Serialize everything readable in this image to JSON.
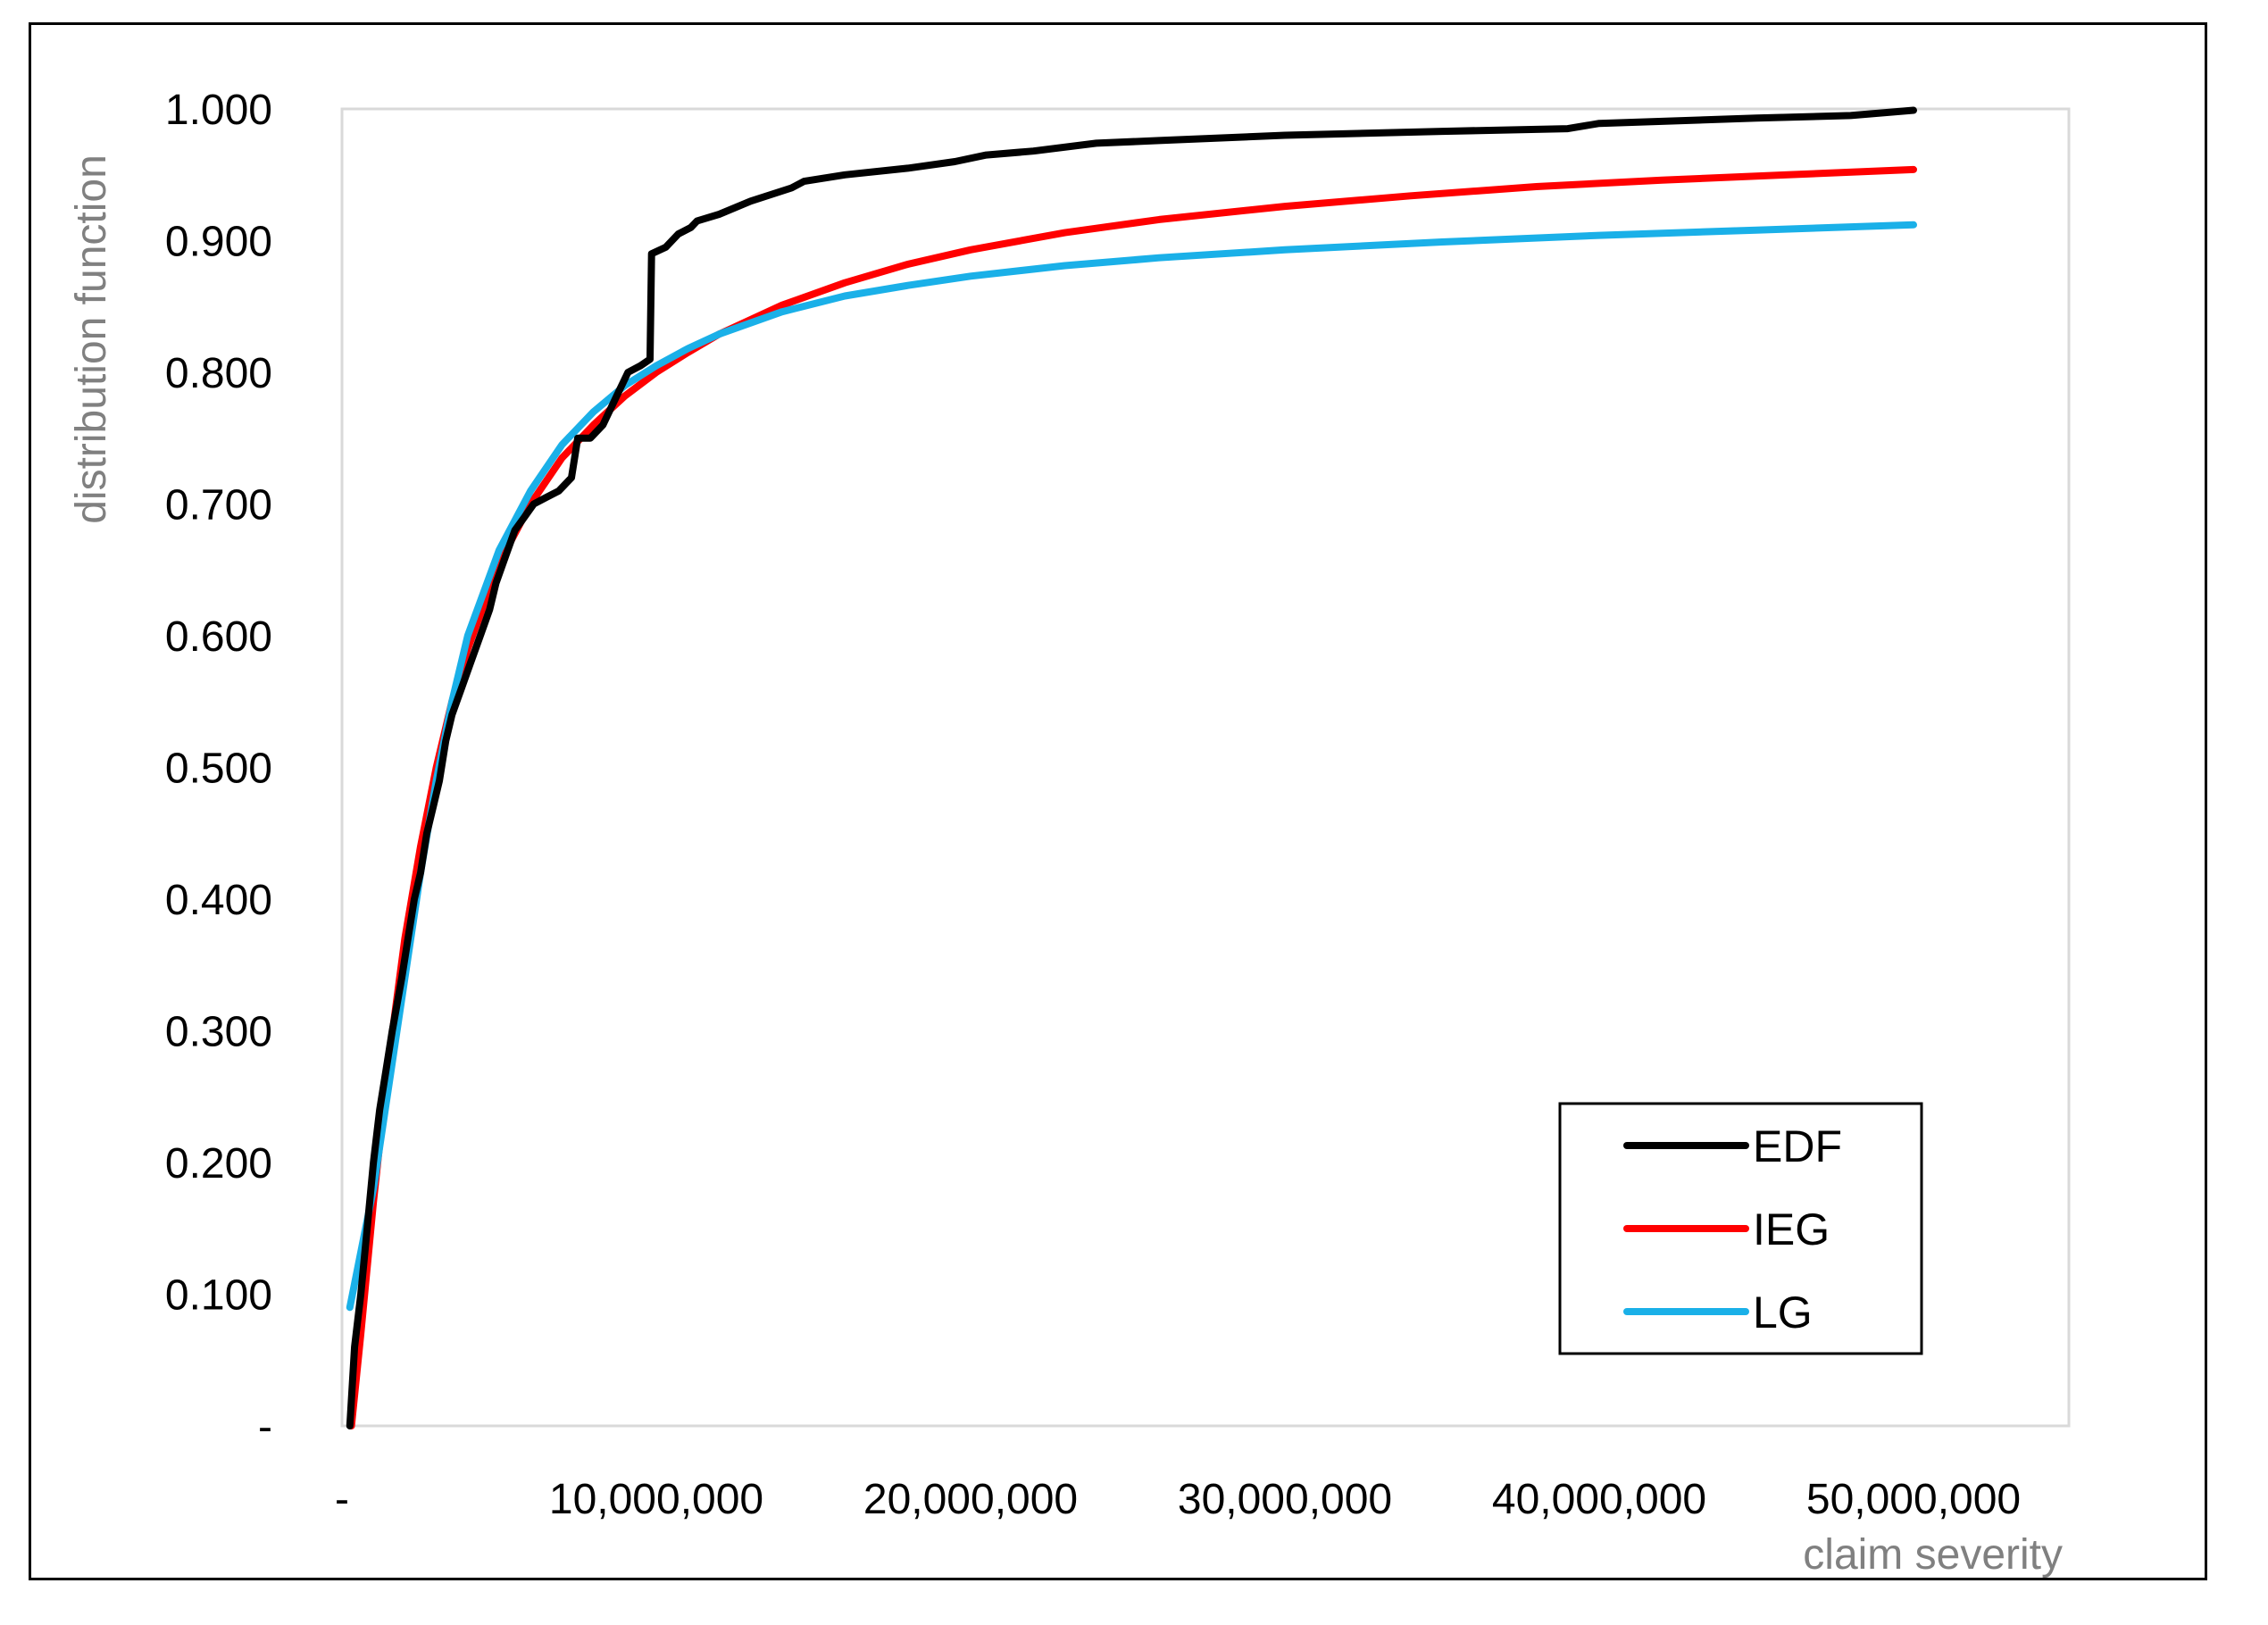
{
  "chart_data": {
    "type": "line",
    "title": "",
    "xlabel": "claim severity",
    "ylabel": "distribution function",
    "xlim": [
      0,
      55000000
    ],
    "ylim": [
      0,
      1.0
    ],
    "x_ticks": [
      {
        "value": 0,
        "label": "-"
      },
      {
        "value": 10000000,
        "label": "10,000,000"
      },
      {
        "value": 20000000,
        "label": "20,000,000"
      },
      {
        "value": 30000000,
        "label": "30,000,000"
      },
      {
        "value": 40000000,
        "label": "40,000,000"
      },
      {
        "value": 50000000,
        "label": "50,000,000"
      }
    ],
    "y_ticks": [
      {
        "value": 0,
        "label": "-"
      },
      {
        "value": 0.1,
        "label": "0.100"
      },
      {
        "value": 0.2,
        "label": "0.200"
      },
      {
        "value": 0.3,
        "label": "0.300"
      },
      {
        "value": 0.4,
        "label": "0.400"
      },
      {
        "value": 0.5,
        "label": "0.500"
      },
      {
        "value": 0.6,
        "label": "0.600"
      },
      {
        "value": 0.7,
        "label": "0.700"
      },
      {
        "value": 0.8,
        "label": "0.800"
      },
      {
        "value": 0.9,
        "label": "0.900"
      },
      {
        "value": 1.0,
        "label": "1.000"
      }
    ],
    "grid": false,
    "legend_position": "bottom-right",
    "series": [
      {
        "name": "EDF",
        "color": "#000000",
        "points": [
          [
            250000,
            0.0
          ],
          [
            400000,
            0.06
          ],
          [
            600000,
            0.1
          ],
          [
            800000,
            0.15
          ],
          [
            1000000,
            0.2
          ],
          [
            1200000,
            0.24
          ],
          [
            1400000,
            0.27
          ],
          [
            1600000,
            0.3
          ],
          [
            1900000,
            0.34
          ],
          [
            2100000,
            0.37
          ],
          [
            2300000,
            0.4
          ],
          [
            2500000,
            0.42
          ],
          [
            2700000,
            0.45
          ],
          [
            2900000,
            0.47
          ],
          [
            3100000,
            0.49
          ],
          [
            3300000,
            0.52
          ],
          [
            3500000,
            0.54
          ],
          [
            3800000,
            0.56
          ],
          [
            4100000,
            0.58
          ],
          [
            4400000,
            0.6
          ],
          [
            4700000,
            0.62
          ],
          [
            4900000,
            0.64
          ],
          [
            5200000,
            0.66
          ],
          [
            5500000,
            0.68
          ],
          [
            5800000,
            0.69
          ],
          [
            6100000,
            0.7
          ],
          [
            6500000,
            0.705
          ],
          [
            6900000,
            0.71
          ],
          [
            7300000,
            0.72
          ],
          [
            7500000,
            0.75
          ],
          [
            7900000,
            0.75
          ],
          [
            8300000,
            0.76
          ],
          [
            8700000,
            0.78
          ],
          [
            9100000,
            0.8
          ],
          [
            9500000,
            0.805
          ],
          [
            9800000,
            0.81
          ],
          [
            9850000,
            0.89
          ],
          [
            10300000,
            0.895
          ],
          [
            10700000,
            0.905
          ],
          [
            11100000,
            0.91
          ],
          [
            11300000,
            0.915
          ],
          [
            12000000,
            0.92
          ],
          [
            13000000,
            0.93
          ],
          [
            14300000,
            0.94
          ],
          [
            14700000,
            0.945
          ],
          [
            16000000,
            0.95
          ],
          [
            18000000,
            0.955
          ],
          [
            19500000,
            0.96
          ],
          [
            20500000,
            0.965
          ],
          [
            22000000,
            0.968
          ],
          [
            24000000,
            0.974
          ],
          [
            26000000,
            0.976
          ],
          [
            30000000,
            0.98
          ],
          [
            35000000,
            0.983
          ],
          [
            39000000,
            0.985
          ],
          [
            40000000,
            0.989
          ],
          [
            45000000,
            0.993
          ],
          [
            48000000,
            0.995
          ],
          [
            50000000,
            0.999
          ]
        ]
      },
      {
        "name": "IEG",
        "color": "#ff0000",
        "points": [
          [
            300000,
            0.0
          ],
          [
            600000,
            0.07
          ],
          [
            1000000,
            0.17
          ],
          [
            1500000,
            0.28
          ],
          [
            2000000,
            0.37
          ],
          [
            2500000,
            0.44
          ],
          [
            3000000,
            0.5
          ],
          [
            3500000,
            0.55
          ],
          [
            4000000,
            0.59
          ],
          [
            5000000,
            0.655
          ],
          [
            6000000,
            0.7
          ],
          [
            7000000,
            0.735
          ],
          [
            8000000,
            0.76
          ],
          [
            9000000,
            0.782
          ],
          [
            10000000,
            0.8
          ],
          [
            11000000,
            0.815
          ],
          [
            12000000,
            0.829
          ],
          [
            14000000,
            0.851
          ],
          [
            16000000,
            0.868
          ],
          [
            18000000,
            0.882
          ],
          [
            20000000,
            0.893
          ],
          [
            23000000,
            0.906
          ],
          [
            26000000,
            0.916
          ],
          [
            30000000,
            0.926
          ],
          [
            34000000,
            0.934
          ],
          [
            38000000,
            0.941
          ],
          [
            42000000,
            0.946
          ],
          [
            46000000,
            0.95
          ],
          [
            50000000,
            0.954
          ]
        ]
      },
      {
        "name": "LG",
        "color": "#1ab0e8",
        "points": [
          [
            250000,
            0.09
          ],
          [
            500000,
            0.12
          ],
          [
            1000000,
            0.18
          ],
          [
            1500000,
            0.26
          ],
          [
            2000000,
            0.34
          ],
          [
            2500000,
            0.42
          ],
          [
            3000000,
            0.49
          ],
          [
            3500000,
            0.55
          ],
          [
            4000000,
            0.6
          ],
          [
            5000000,
            0.665
          ],
          [
            6000000,
            0.71
          ],
          [
            7000000,
            0.745
          ],
          [
            8000000,
            0.77
          ],
          [
            9000000,
            0.79
          ],
          [
            10000000,
            0.805
          ],
          [
            11000000,
            0.818
          ],
          [
            12000000,
            0.829
          ],
          [
            14000000,
            0.846
          ],
          [
            16000000,
            0.858
          ],
          [
            18000000,
            0.866
          ],
          [
            20000000,
            0.873
          ],
          [
            23000000,
            0.881
          ],
          [
            26000000,
            0.887
          ],
          [
            30000000,
            0.893
          ],
          [
            35000000,
            0.899
          ],
          [
            40000000,
            0.904
          ],
          [
            45000000,
            0.908
          ],
          [
            50000000,
            0.912
          ]
        ]
      }
    ]
  }
}
